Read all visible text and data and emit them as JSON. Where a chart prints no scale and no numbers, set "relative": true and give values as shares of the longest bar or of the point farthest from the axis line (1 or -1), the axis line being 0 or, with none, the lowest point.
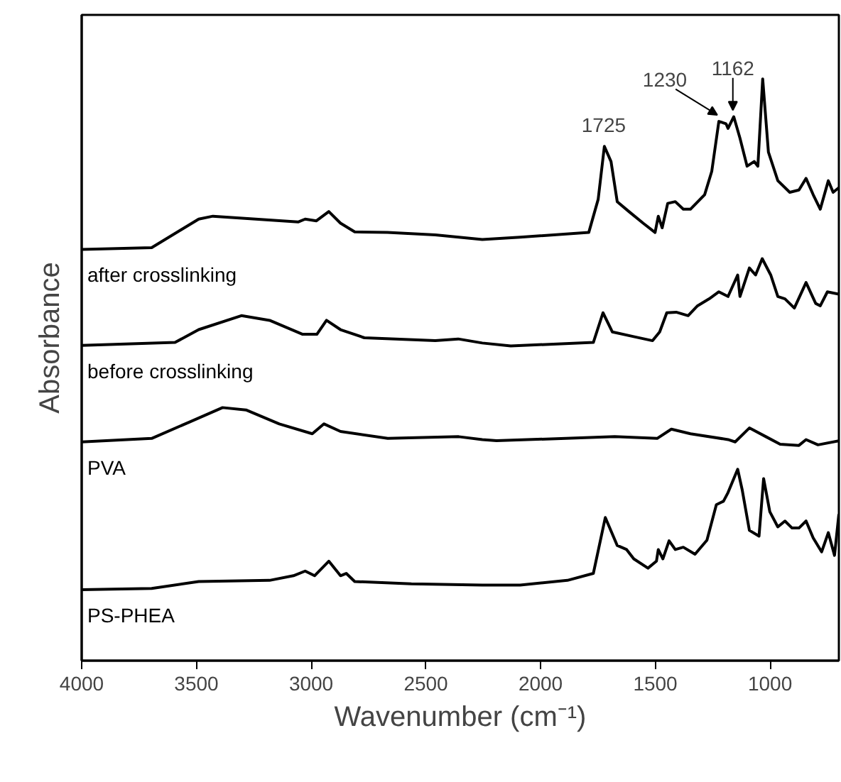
{
  "chart_data": {
    "type": "line",
    "relative": true,
    "xlabel": "Wavenumber (cm⁻¹)",
    "ylabel": "Absorbance",
    "xlim": [
      4000,
      700
    ],
    "xticks": [
      4000,
      3500,
      3000,
      2500,
      2000,
      1500,
      1000
    ],
    "series": [
      {
        "name": "after crosslinking",
        "color": "#000000",
        "x": [
          4000,
          3695,
          3490,
          3428,
          3242,
          3057,
          3026,
          2977,
          2923,
          2872,
          2810,
          2668,
          2459,
          2254,
          2089,
          1790,
          1749,
          1722,
          1693,
          1666,
          1615,
          1553,
          1501,
          1487,
          1470,
          1446,
          1413,
          1378,
          1347,
          1285,
          1254,
          1223,
          1192,
          1183,
          1158,
          1131,
          1100,
          1069,
          1053,
          1032,
          1007,
          966,
          914,
          874,
          843,
          812,
          781,
          746,
          725,
          700
        ],
        "values": [
          0.707,
          0.71,
          0.759,
          0.764,
          0.759,
          0.754,
          0.759,
          0.756,
          0.772,
          0.752,
          0.737,
          0.736,
          0.732,
          0.724,
          0.728,
          0.736,
          0.793,
          0.884,
          0.858,
          0.789,
          0.772,
          0.752,
          0.736,
          0.764,
          0.744,
          0.786,
          0.789,
          0.776,
          0.776,
          0.801,
          0.841,
          0.927,
          0.923,
          0.915,
          0.935,
          0.898,
          0.85,
          0.858,
          0.85,
          1.0,
          0.874,
          0.825,
          0.805,
          0.809,
          0.829,
          0.801,
          0.776,
          0.825,
          0.805,
          0.813
        ]
      },
      {
        "name": "before crosslinking",
        "color": "#000000",
        "x": [
          4000,
          3593,
          3490,
          3304,
          3181,
          3037,
          2975,
          2933,
          2872,
          2768,
          2459,
          2359,
          2254,
          2130,
          1770,
          1728,
          1687,
          1594,
          1512,
          1481,
          1450,
          1409,
          1357,
          1316,
          1265,
          1223,
          1183,
          1141,
          1131,
          1090,
          1063,
          1034,
          997,
          966,
          935,
          894,
          843,
          801,
          781,
          750,
          700
        ],
        "values": [
          0.542,
          0.547,
          0.569,
          0.593,
          0.585,
          0.561,
          0.561,
          0.585,
          0.569,
          0.555,
          0.55,
          0.553,
          0.546,
          0.541,
          0.547,
          0.598,
          0.565,
          0.557,
          0.55,
          0.565,
          0.598,
          0.599,
          0.593,
          0.61,
          0.622,
          0.634,
          0.626,
          0.663,
          0.626,
          0.675,
          0.663,
          0.691,
          0.663,
          0.626,
          0.622,
          0.606,
          0.65,
          0.614,
          0.61,
          0.634,
          0.63
        ]
      },
      {
        "name": "PVA",
        "color": "#000000",
        "x": [
          4000,
          3695,
          3531,
          3386,
          3284,
          3139,
          2995,
          2944,
          2872,
          2666,
          2357,
          2254,
          2192,
          1677,
          1492,
          1430,
          1347,
          1183,
          1152,
          1090,
          1018,
          956,
          874,
          843,
          791,
          700
        ],
        "values": [
          0.376,
          0.382,
          0.41,
          0.435,
          0.431,
          0.407,
          0.39,
          0.407,
          0.394,
          0.382,
          0.385,
          0.38,
          0.378,
          0.385,
          0.382,
          0.398,
          0.39,
          0.38,
          0.376,
          0.4,
          0.385,
          0.372,
          0.37,
          0.38,
          0.371,
          0.378
        ]
      },
      {
        "name": "PS-PHEA",
        "color": "#000000",
        "x": [
          4000,
          3695,
          3490,
          3181,
          3077,
          3026,
          2985,
          2923,
          2872,
          2847,
          2810,
          2563,
          2254,
          2089,
          1883,
          1770,
          1718,
          1666,
          1625,
          1594,
          1532,
          1495,
          1487,
          1467,
          1440,
          1413,
          1378,
          1327,
          1275,
          1234,
          1203,
          1183,
          1141,
          1121,
          1090,
          1048,
          1028,
          1001,
          966,
          935,
          904,
          874,
          843,
          812,
          775,
          746,
          719,
          700
        ],
        "values": [
          0.122,
          0.124,
          0.136,
          0.138,
          0.146,
          0.154,
          0.146,
          0.171,
          0.146,
          0.15,
          0.136,
          0.132,
          0.13,
          0.13,
          0.138,
          0.15,
          0.246,
          0.198,
          0.191,
          0.175,
          0.159,
          0.171,
          0.191,
          0.175,
          0.206,
          0.191,
          0.195,
          0.183,
          0.207,
          0.268,
          0.274,
          0.289,
          0.329,
          0.293,
          0.224,
          0.214,
          0.313,
          0.256,
          0.23,
          0.24,
          0.228,
          0.228,
          0.24,
          0.211,
          0.187,
          0.22,
          0.181,
          0.252
        ]
      }
    ],
    "annotations": [
      {
        "text": "1725",
        "x": 1725,
        "y": 0.884
      },
      {
        "text": "1230",
        "x": 1230,
        "y": 0.927
      },
      {
        "text": "1162",
        "x": 1162,
        "y": 0.935
      }
    ]
  }
}
